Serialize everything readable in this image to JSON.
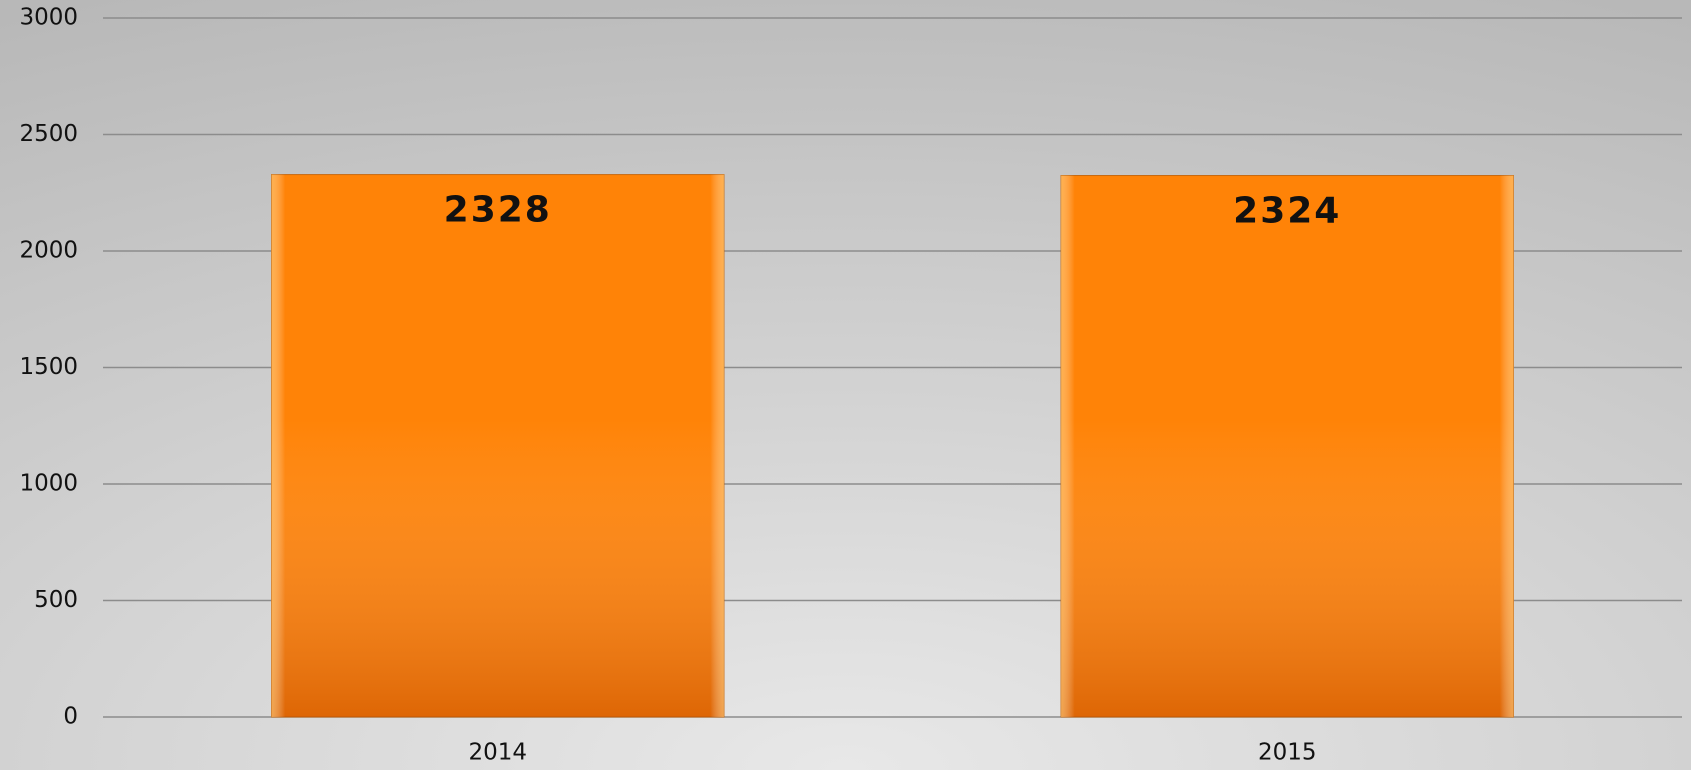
{
  "chart_data": {
    "type": "bar",
    "categories": [
      "2014",
      "2015"
    ],
    "values": [
      2328,
      2324
    ],
    "color": "#ff8307",
    "ylim": [
      0,
      3000
    ],
    "yticks": [
      0,
      500,
      1000,
      1500,
      2000,
      2500,
      3000
    ],
    "grid": true
  }
}
